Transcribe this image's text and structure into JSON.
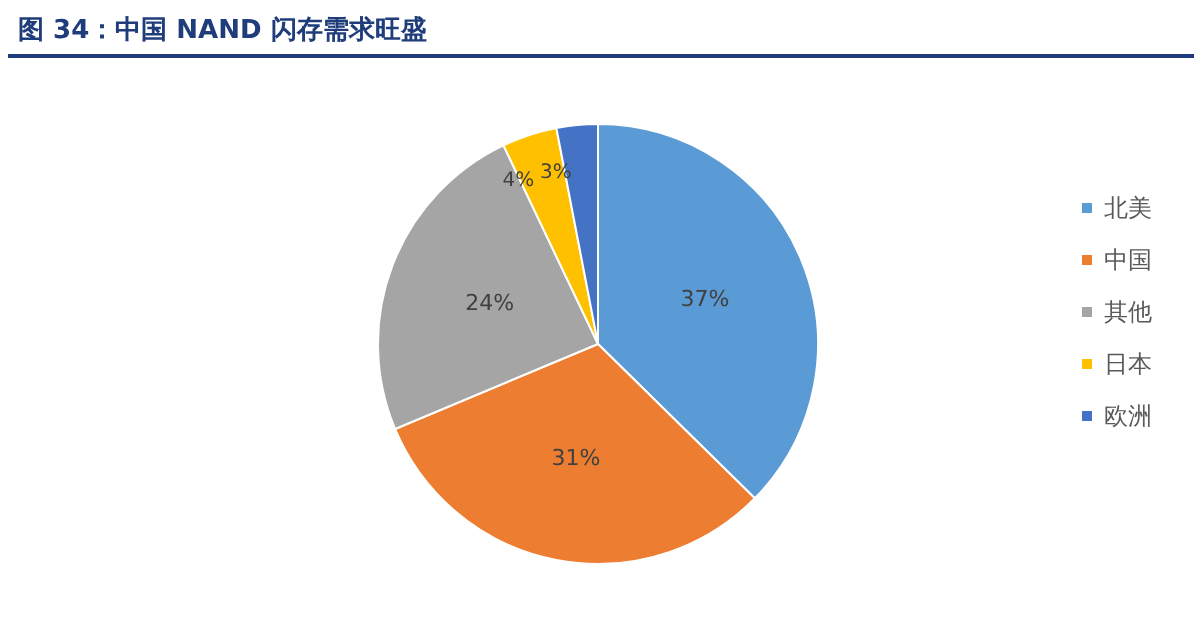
{
  "chart_data": {
    "type": "pie",
    "title": "图 34：中国 NAND 闪存需求旺盛",
    "categories": [
      "北美",
      "中国",
      "其他",
      "日本",
      "欧洲"
    ],
    "values": [
      37,
      31,
      24,
      4,
      3
    ],
    "colors": [
      "#5b9bd5",
      "#ed7d31",
      "#a5a5a5",
      "#ffc000",
      "#4472c4"
    ],
    "value_labels": [
      "37%",
      "31%",
      "24%",
      "4%",
      "3%"
    ],
    "legend": "right"
  }
}
